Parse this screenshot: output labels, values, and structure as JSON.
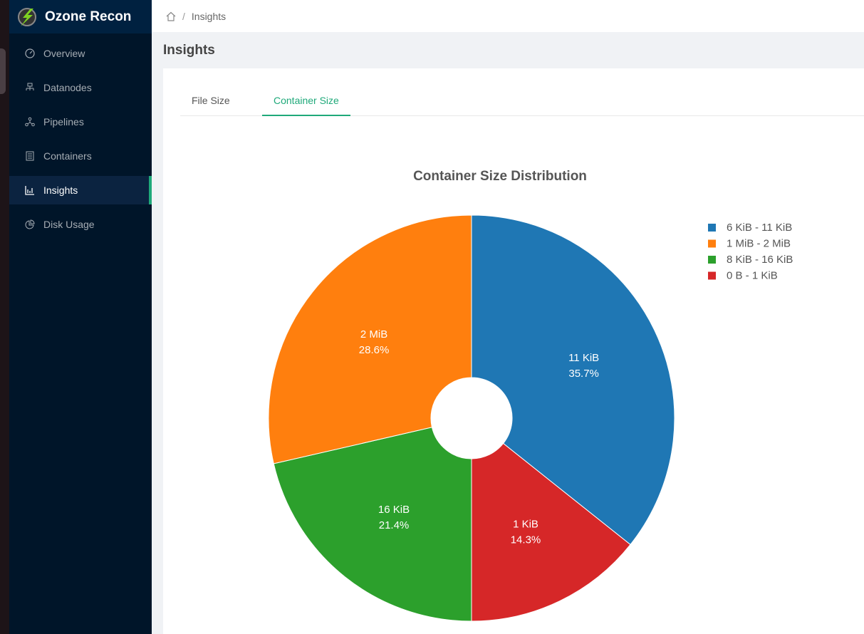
{
  "app": {
    "title": "Ozone Recon"
  },
  "sidebar": {
    "items": [
      {
        "label": "Overview",
        "icon": "dashboard-icon"
      },
      {
        "label": "Datanodes",
        "icon": "cluster-icon"
      },
      {
        "label": "Pipelines",
        "icon": "deployment-unit-icon"
      },
      {
        "label": "Containers",
        "icon": "container-icon"
      },
      {
        "label": "Insights",
        "icon": "bar-chart-icon",
        "active": true
      },
      {
        "label": "Disk Usage",
        "icon": "pie-chart-icon"
      }
    ]
  },
  "breadcrumb": {
    "current": "Insights",
    "sep": "/"
  },
  "page": {
    "title": "Insights"
  },
  "tabs": [
    {
      "label": "File Size"
    },
    {
      "label": "Container Size",
      "active": true
    }
  ],
  "chart_data": {
    "type": "pie",
    "title": "Container Size Distribution",
    "legend_position": "top-right",
    "slices": [
      {
        "legend": "6 KiB - 11 KiB",
        "label": "11 KiB",
        "percent": 35.7,
        "pct_label": "35.7%",
        "color": "#1f77b4"
      },
      {
        "legend": "0 B - 1 KiB",
        "label": "1 KiB",
        "percent": 14.3,
        "pct_label": "14.3%",
        "color": "#d62728"
      },
      {
        "legend": "8 KiB - 16 KiB",
        "label": "16 KiB",
        "percent": 21.4,
        "pct_label": "21.4%",
        "color": "#2ca02c"
      },
      {
        "legend": "1 MiB - 2 MiB",
        "label": "2 MiB",
        "percent": 28.6,
        "pct_label": "28.6%",
        "color": "#ff7f0e"
      }
    ],
    "legend_order": [
      0,
      3,
      2,
      1
    ]
  }
}
